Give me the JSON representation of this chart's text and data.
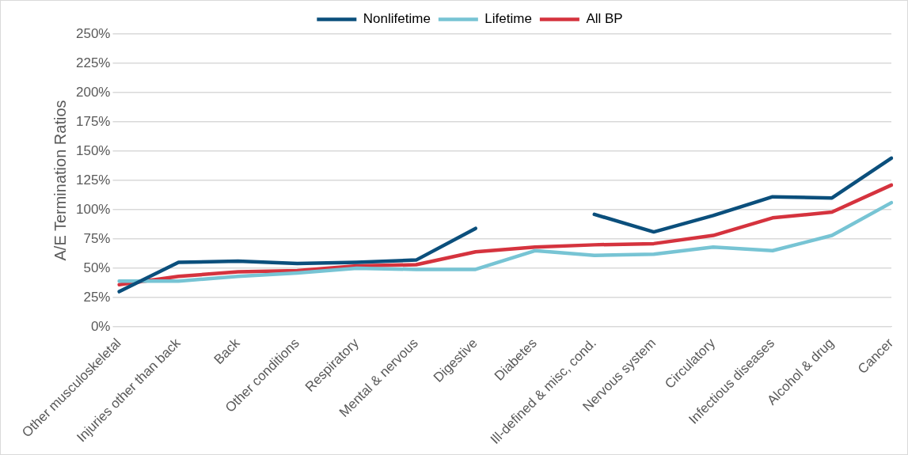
{
  "chart_data": {
    "type": "line",
    "ylabel": "A/E Termination Ratios",
    "categories": [
      "Other musculoskeletal",
      "Injuries other than back",
      "Back",
      "Other conditions",
      "Respiratory",
      "Mental & nervous",
      "Digestive",
      "Diabetes",
      "Ill-defined & misc, cond.",
      "Nervous system",
      "Circulatory",
      "Infectious diseases",
      "Alcohol & drug",
      "Cancer"
    ],
    "series": [
      {
        "name": "Nonlifetime",
        "color": "#0b4f7c",
        "values": [
          30,
          55,
          56,
          54,
          55,
          57,
          84,
          null,
          96,
          81,
          95,
          111,
          110,
          144
        ]
      },
      {
        "name": "Lifetime",
        "color": "#77c4d4",
        "values": [
          39,
          39,
          43,
          46,
          50,
          49,
          49,
          65,
          61,
          62,
          68,
          65,
          78,
          106
        ]
      },
      {
        "name": "All BP",
        "color": "#d5333e",
        "values": [
          36,
          43,
          47,
          48,
          52,
          53,
          64,
          68,
          70,
          71,
          78,
          93,
          98,
          121
        ]
      }
    ],
    "ylim": [
      0,
      250
    ],
    "yticks": [
      {
        "value": 0,
        "label": "0%"
      },
      {
        "value": 25,
        "label": "25%"
      },
      {
        "value": 50,
        "label": "50%"
      },
      {
        "value": 75,
        "label": "75%"
      },
      {
        "value": 100,
        "label": "100%"
      },
      {
        "value": 125,
        "label": "125%"
      },
      {
        "value": 150,
        "label": "150%"
      },
      {
        "value": 175,
        "label": "175%"
      },
      {
        "value": 200,
        "label": "200%"
      },
      {
        "value": 225,
        "label": "225%"
      },
      {
        "value": 250,
        "label": "250%"
      }
    ],
    "grid": "y",
    "legend": "top",
    "marker": "none",
    "line_style": "solid"
  }
}
